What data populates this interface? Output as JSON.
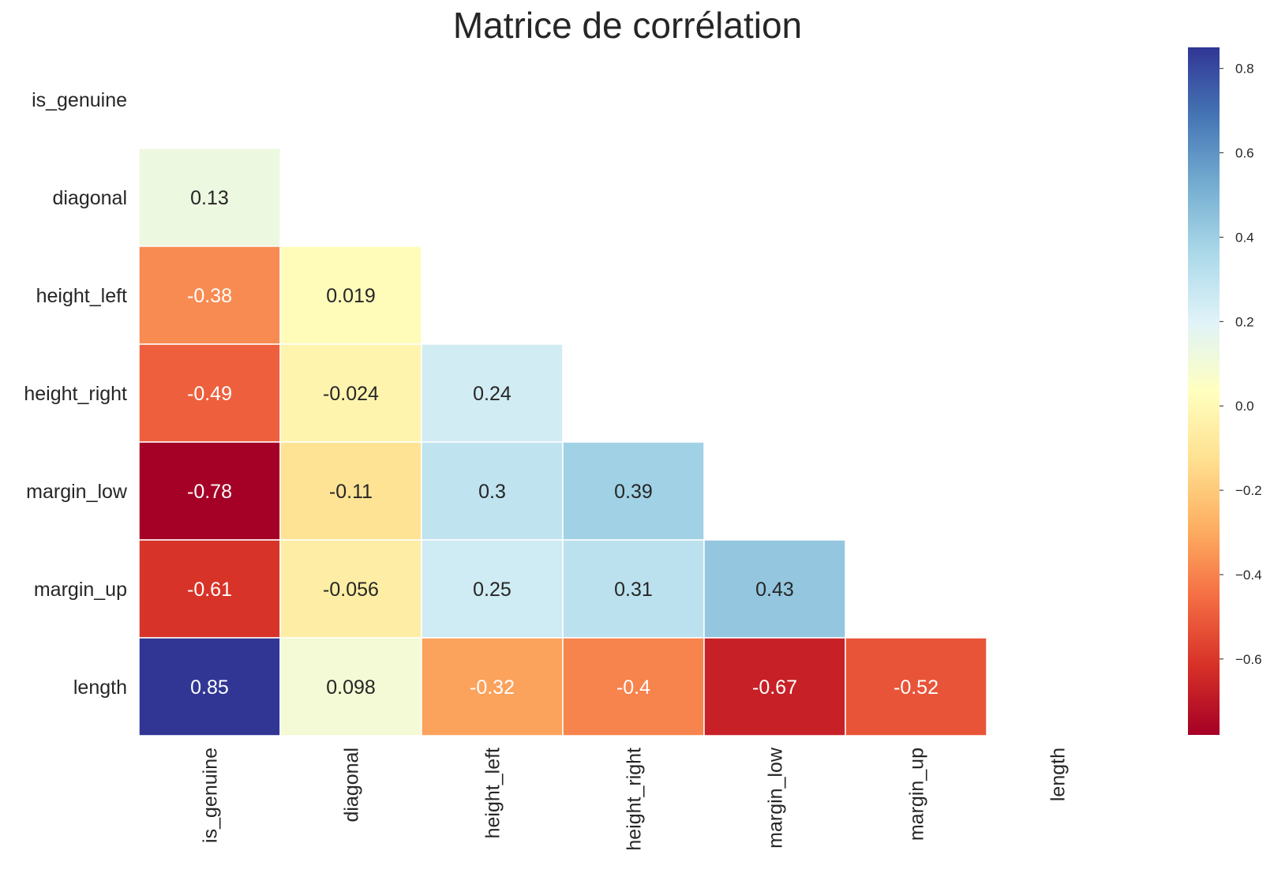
{
  "chart_data": {
    "type": "heatmap",
    "title": "Matrice de corrélation",
    "xlabel": "",
    "ylabel": "",
    "mask": "upper-triangle-including-diagonal",
    "variables": [
      "is_genuine",
      "diagonal",
      "height_left",
      "height_right",
      "margin_low",
      "margin_up",
      "length"
    ],
    "cells": [
      {
        "row": "diagonal",
        "col": "is_genuine",
        "value": 0.13,
        "label": "0.13"
      },
      {
        "row": "height_left",
        "col": "is_genuine",
        "value": -0.38,
        "label": "-0.38"
      },
      {
        "row": "height_left",
        "col": "diagonal",
        "value": 0.019,
        "label": "0.019"
      },
      {
        "row": "height_right",
        "col": "is_genuine",
        "value": -0.49,
        "label": "-0.49"
      },
      {
        "row": "height_right",
        "col": "diagonal",
        "value": -0.024,
        "label": "-0.024"
      },
      {
        "row": "height_right",
        "col": "height_left",
        "value": 0.24,
        "label": "0.24"
      },
      {
        "row": "margin_low",
        "col": "is_genuine",
        "value": -0.78,
        "label": "-0.78"
      },
      {
        "row": "margin_low",
        "col": "diagonal",
        "value": -0.11,
        "label": "-0.11"
      },
      {
        "row": "margin_low",
        "col": "height_left",
        "value": 0.3,
        "label": "0.3"
      },
      {
        "row": "margin_low",
        "col": "height_right",
        "value": 0.39,
        "label": "0.39"
      },
      {
        "row": "margin_up",
        "col": "is_genuine",
        "value": -0.61,
        "label": "-0.61"
      },
      {
        "row": "margin_up",
        "col": "diagonal",
        "value": -0.056,
        "label": "-0.056"
      },
      {
        "row": "margin_up",
        "col": "height_left",
        "value": 0.25,
        "label": "0.25"
      },
      {
        "row": "margin_up",
        "col": "height_right",
        "value": 0.31,
        "label": "0.31"
      },
      {
        "row": "margin_up",
        "col": "margin_low",
        "value": 0.43,
        "label": "0.43"
      },
      {
        "row": "length",
        "col": "is_genuine",
        "value": 0.85,
        "label": "0.85"
      },
      {
        "row": "length",
        "col": "diagonal",
        "value": 0.098,
        "label": "0.098"
      },
      {
        "row": "length",
        "col": "height_left",
        "value": -0.32,
        "label": "-0.32"
      },
      {
        "row": "length",
        "col": "height_right",
        "value": -0.4,
        "label": "-0.4"
      },
      {
        "row": "length",
        "col": "margin_low",
        "value": -0.67,
        "label": "-0.67"
      },
      {
        "row": "length",
        "col": "margin_up",
        "value": -0.52,
        "label": "-0.52"
      }
    ],
    "colorbar": {
      "colormap": "RdYlBu",
      "range": [
        -0.78,
        0.85
      ],
      "ticks": [
        0.8,
        0.6,
        0.4,
        0.2,
        0.0,
        -0.2,
        -0.4,
        -0.6
      ],
      "tick_labels": [
        "0.8",
        "0.6",
        "0.4",
        "0.2",
        "0.0",
        "−0.2",
        "−0.4",
        "−0.6"
      ]
    },
    "grid": false,
    "colors": {
      "cell_border": "#ffffff",
      "text_dark": "#262626",
      "text_light": "#ffffff"
    }
  }
}
